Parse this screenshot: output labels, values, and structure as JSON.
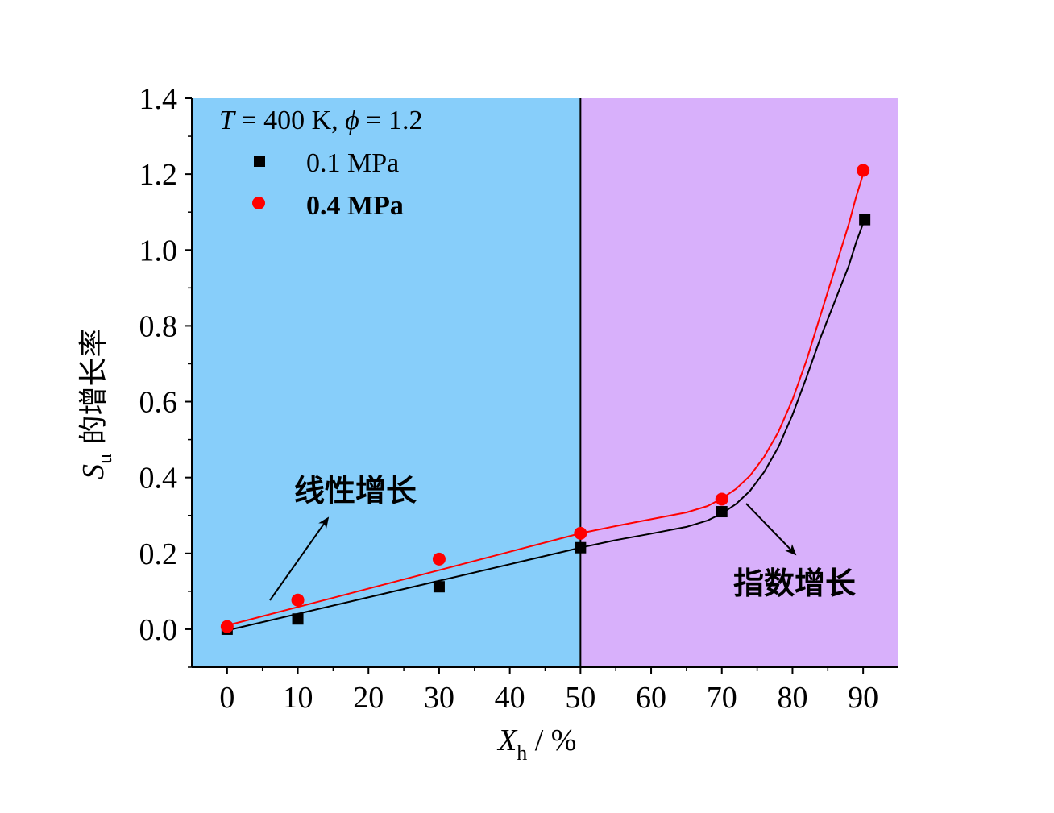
{
  "chart_data": {
    "type": "scatter",
    "annotation": {
      "T_symbol": "T",
      "T_value": " = 400 K, ",
      "phi_symbol": "ϕ",
      "phi_value": " = 1.2"
    },
    "xlabel": {
      "symbol": "X",
      "subscript": "h",
      "unit": " / %"
    },
    "ylabel": {
      "symbol": "S",
      "subscript": "u",
      "text": " 的增长率"
    },
    "xlim": [
      -5,
      95
    ],
    "ylim": [
      -0.1,
      1.4
    ],
    "x_ticks": [
      0,
      10,
      20,
      30,
      40,
      50,
      60,
      70,
      80,
      90
    ],
    "x_tick_labels": [
      "0",
      "10",
      "20",
      "30",
      "40",
      "50",
      "60",
      "70",
      "80",
      "90"
    ],
    "y_ticks": [
      0.0,
      0.2,
      0.4,
      0.6,
      0.8,
      1.0,
      1.2,
      1.4
    ],
    "y_tick_labels": [
      "0.0",
      "0.2",
      "0.4",
      "0.6",
      "0.8",
      "1.0",
      "1.2",
      "1.4"
    ],
    "regions": [
      {
        "x_range": [
          -5,
          50
        ],
        "color": "#87CEFA",
        "label": "线性增长"
      },
      {
        "x_range": [
          50,
          95
        ],
        "color": "#D8B0FB",
        "label": "指数增长"
      }
    ],
    "divider_x": 50,
    "series": [
      {
        "name": "0.1 MPa",
        "marker": "square",
        "color": "#000000",
        "x": [
          0,
          10,
          30,
          50,
          70,
          90
        ],
        "y": [
          0.0,
          0.027,
          0.112,
          0.215,
          0.31,
          1.08
        ]
      },
      {
        "name": "0.4 MPa",
        "marker": "circle",
        "color": "#FF0000",
        "x": [
          0,
          10,
          30,
          50,
          70,
          90
        ],
        "y": [
          0.007,
          0.077,
          0.185,
          0.253,
          0.343,
          1.21
        ]
      }
    ],
    "fits": [
      {
        "series": "0.1 MPa",
        "color": "#000000",
        "linear": {
          "x0": 0,
          "x1": 50,
          "y0": -0.003,
          "y1": 0.215
        },
        "curve": [
          [
            50,
            0.215
          ],
          [
            55,
            0.235
          ],
          [
            60,
            0.252
          ],
          [
            65,
            0.27
          ],
          [
            68,
            0.287
          ],
          [
            70,
            0.305
          ],
          [
            72,
            0.33
          ],
          [
            74,
            0.365
          ],
          [
            76,
            0.415
          ],
          [
            78,
            0.48
          ],
          [
            80,
            0.565
          ],
          [
            82,
            0.665
          ],
          [
            84,
            0.77
          ],
          [
            86,
            0.865
          ],
          [
            88,
            0.96
          ],
          [
            89,
            1.02
          ],
          [
            90,
            1.07
          ]
        ]
      },
      {
        "series": "0.4 MPa",
        "color": "#FF0000",
        "linear": {
          "x0": 0,
          "x1": 50,
          "y0": 0.01,
          "y1": 0.253
        },
        "curve": [
          [
            50,
            0.253
          ],
          [
            55,
            0.272
          ],
          [
            60,
            0.29
          ],
          [
            65,
            0.308
          ],
          [
            68,
            0.325
          ],
          [
            70,
            0.345
          ],
          [
            72,
            0.37
          ],
          [
            74,
            0.405
          ],
          [
            76,
            0.455
          ],
          [
            78,
            0.52
          ],
          [
            80,
            0.605
          ],
          [
            82,
            0.71
          ],
          [
            84,
            0.83
          ],
          [
            86,
            0.95
          ],
          [
            88,
            1.07
          ],
          [
            89,
            1.14
          ],
          [
            90,
            1.2
          ]
        ]
      }
    ],
    "legend_position": "top-left",
    "grid": false
  }
}
